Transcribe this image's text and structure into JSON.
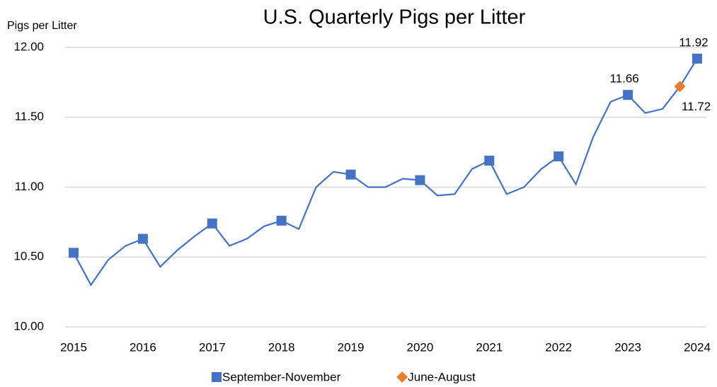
{
  "chart_data": {
    "type": "line",
    "title": "U.S. Quarterly Pigs per Litter",
    "y_label": "Pigs per Litter",
    "categories": [
      "2015",
      null,
      null,
      null,
      "2016",
      null,
      null,
      null,
      "2017",
      null,
      null,
      null,
      "2018",
      null,
      null,
      null,
      "2019",
      null,
      null,
      null,
      "2020",
      null,
      null,
      null,
      "2021",
      null,
      null,
      null,
      "2022",
      null,
      null,
      null,
      "2023",
      null,
      null,
      null,
      "2024"
    ],
    "ylim": [
      10,
      12
    ],
    "yticks": [
      {
        "value": 10,
        "label": "10.00"
      },
      {
        "value": 10.5,
        "label": "10.50"
      },
      {
        "value": 11,
        "label": "11.00"
      },
      {
        "value": 11.5,
        "label": "11.50"
      },
      {
        "value": 12,
        "label": "12.00"
      }
    ],
    "grid": true,
    "legend": "bottom",
    "series": [
      {
        "color": "#4472c4",
        "marker": "none",
        "values": [
          10.53,
          10.3,
          10.48,
          10.58,
          10.63,
          10.43,
          10.55,
          10.65,
          10.74,
          10.58,
          10.63,
          10.72,
          10.76,
          10.7,
          11.0,
          11.11,
          11.09,
          11.0,
          11.0,
          11.06,
          11.05,
          10.94,
          10.95,
          11.13,
          11.19,
          10.95,
          11.0,
          11.13,
          11.22,
          11.02,
          11.36,
          11.61,
          11.66,
          11.53,
          11.56,
          11.72,
          11.92
        ]
      },
      {
        "name": "September-November",
        "color": "#4472c4",
        "marker": "square",
        "values": [
          10.53,
          null,
          null,
          null,
          10.63,
          null,
          null,
          null,
          10.74,
          null,
          null,
          null,
          10.76,
          null,
          null,
          null,
          11.09,
          null,
          null,
          null,
          11.05,
          null,
          null,
          null,
          11.19,
          null,
          null,
          null,
          11.22,
          null,
          null,
          null,
          11.66,
          null,
          null,
          null,
          11.92
        ],
        "value_labels": [
          null,
          null,
          null,
          null,
          null,
          null,
          null,
          null,
          null,
          null,
          null,
          null,
          null,
          null,
          null,
          null,
          null,
          null,
          null,
          null,
          null,
          null,
          null,
          null,
          null,
          null,
          null,
          null,
          null,
          null,
          null,
          null,
          "11.66",
          null,
          null,
          null,
          "11.92"
        ]
      },
      {
        "name": "June-August",
        "color": "#ed7d31",
        "marker": "diamond",
        "values": [
          null,
          null,
          null,
          null,
          null,
          null,
          null,
          null,
          null,
          null,
          null,
          null,
          null,
          null,
          null,
          null,
          null,
          null,
          null,
          null,
          null,
          null,
          null,
          null,
          null,
          null,
          null,
          null,
          null,
          null,
          null,
          null,
          null,
          null,
          null,
          11.72,
          null
        ],
        "value_labels": [
          null,
          null,
          null,
          null,
          null,
          null,
          null,
          null,
          null,
          null,
          null,
          null,
          null,
          null,
          null,
          null,
          null,
          null,
          null,
          null,
          null,
          null,
          null,
          null,
          null,
          null,
          null,
          null,
          null,
          null,
          null,
          null,
          null,
          null,
          null,
          "11.72",
          null
        ]
      }
    ]
  }
}
